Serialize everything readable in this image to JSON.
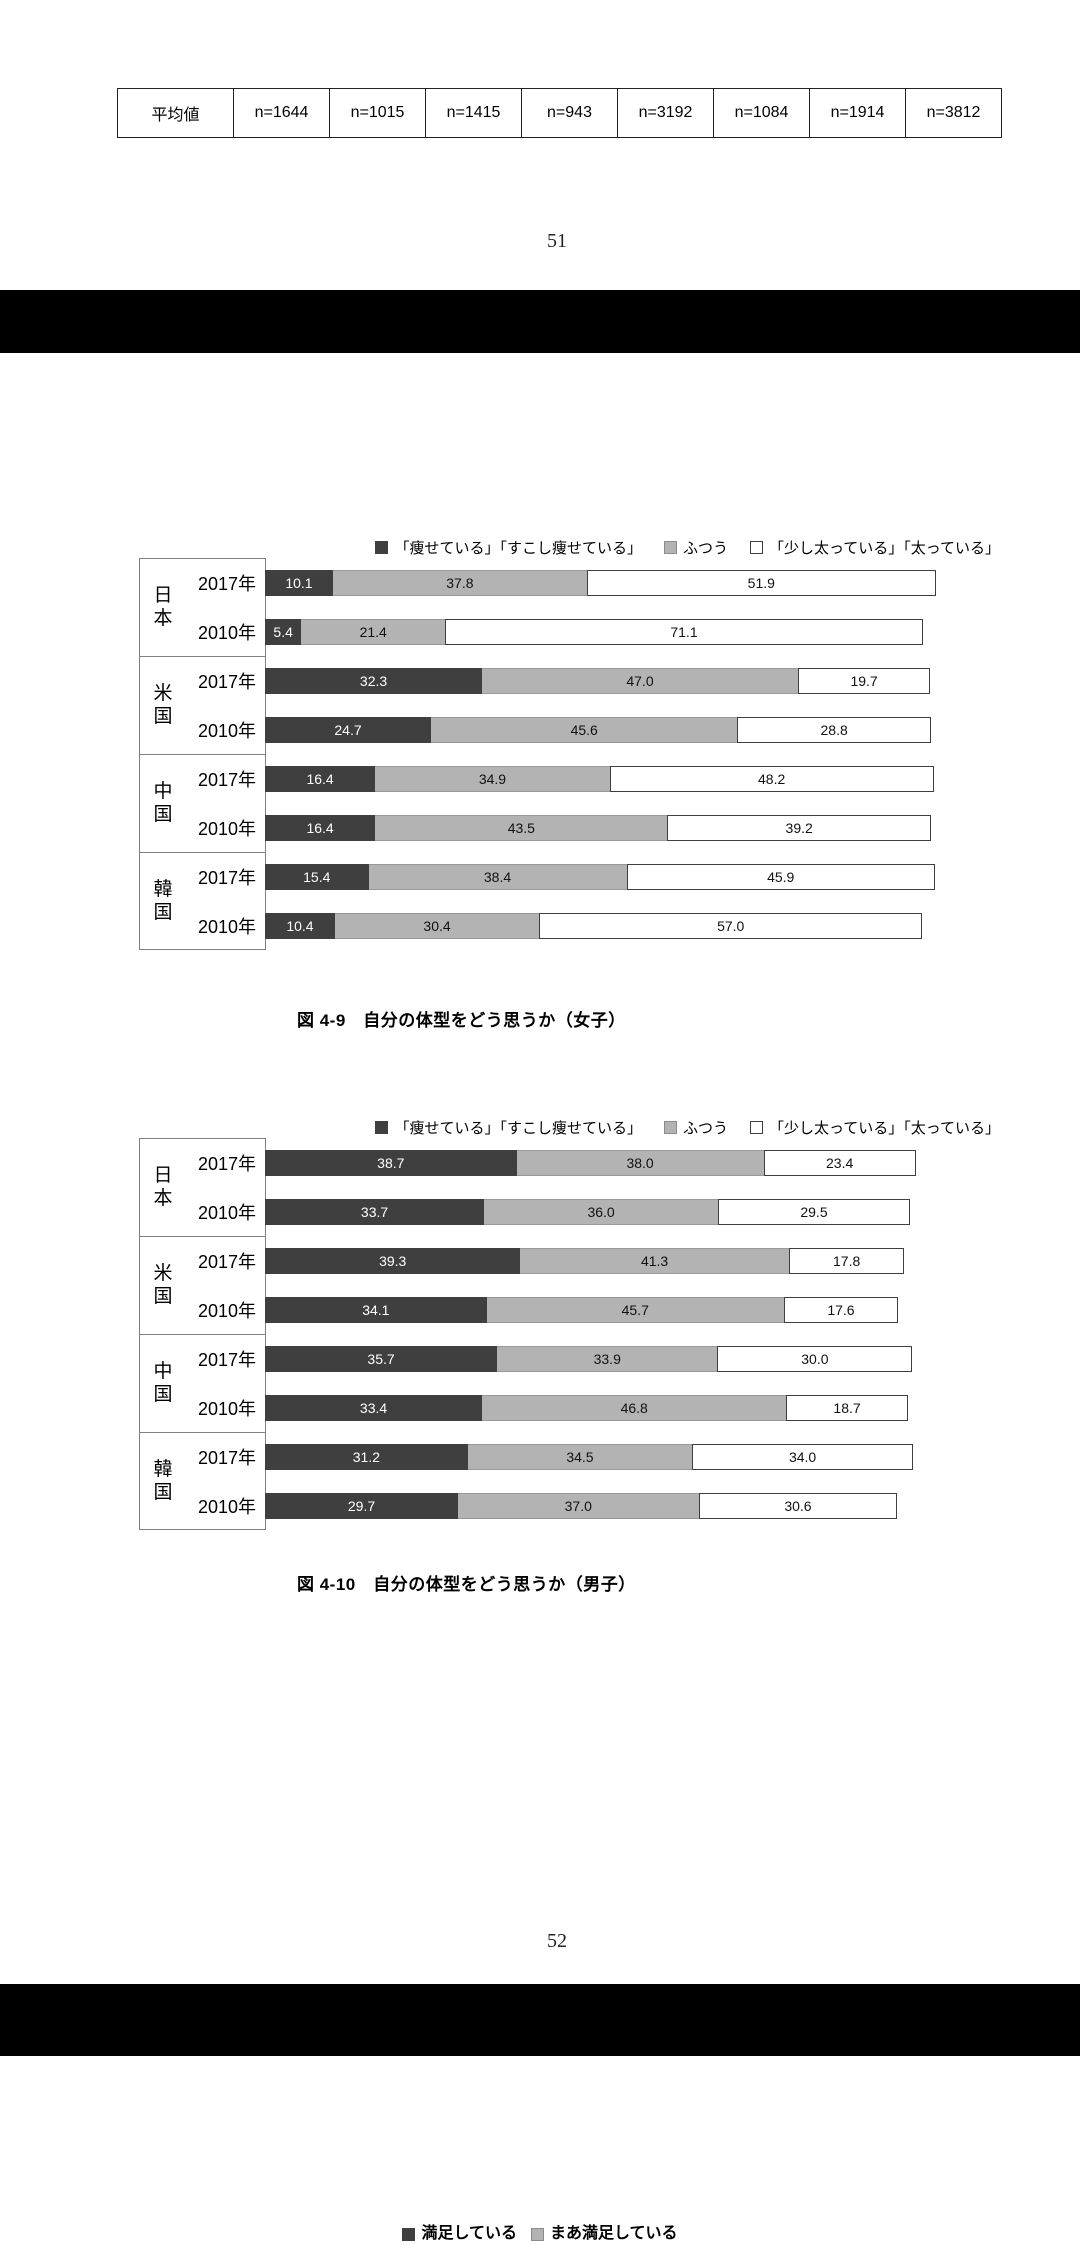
{
  "stat_table": {
    "row_label": "平均値",
    "cells": [
      "n=1644",
      "n=1015",
      "n=1415",
      "n=943",
      "n=3192",
      "n=1084",
      "n=1914",
      "n=3812"
    ]
  },
  "pages": {
    "p51": "51",
    "p52": "52"
  },
  "colors": {
    "segment_dark": "#3f3f3f",
    "segment_gray": "#b3b3b3",
    "segment_white": "#ffffff",
    "separator_black": "#000000"
  },
  "chart_data": [
    {
      "type": "bar",
      "stacked": true,
      "orientation": "horizontal",
      "unit": "%",
      "x_range": [
        0,
        100
      ],
      "title": "図 4-9　自分の体型をどう思うか（女子）",
      "legend": [
        "「痩せている」「すこし痩せている」",
        "ふつう",
        "「少し太っている」「太っている」"
      ],
      "groups": [
        {
          "country": "日本",
          "rows": [
            {
              "year": "2017年",
              "values": [
                10.1,
                37.8,
                51.9
              ]
            },
            {
              "year": "2010年",
              "values": [
                5.4,
                21.4,
                71.1
              ]
            }
          ]
        },
        {
          "country": "米国",
          "rows": [
            {
              "year": "2017年",
              "values": [
                32.3,
                47.0,
                19.7
              ]
            },
            {
              "year": "2010年",
              "values": [
                24.7,
                45.6,
                28.8
              ]
            }
          ]
        },
        {
          "country": "中国",
          "rows": [
            {
              "year": "2017年",
              "values": [
                16.4,
                34.9,
                48.2
              ]
            },
            {
              "year": "2010年",
              "values": [
                16.4,
                43.5,
                39.2
              ]
            }
          ]
        },
        {
          "country": "韓国",
          "rows": [
            {
              "year": "2017年",
              "values": [
                15.4,
                38.4,
                45.9
              ]
            },
            {
              "year": "2010年",
              "values": [
                10.4,
                30.4,
                57.0
              ]
            }
          ]
        }
      ]
    },
    {
      "type": "bar",
      "stacked": true,
      "orientation": "horizontal",
      "unit": "%",
      "x_range": [
        0,
        100
      ],
      "title": "図 4-10　自分の体型をどう思うか（男子）",
      "legend": [
        "「痩せている」「すこし痩せている」",
        "ふつう",
        "「少し太っている」「太っている」"
      ],
      "groups": [
        {
          "country": "日本",
          "rows": [
            {
              "year": "2017年",
              "values": [
                38.7,
                38.0,
                23.4
              ]
            },
            {
              "year": "2010年",
              "values": [
                33.7,
                36.0,
                29.5
              ]
            }
          ]
        },
        {
          "country": "米国",
          "rows": [
            {
              "year": "2017年",
              "values": [
                39.3,
                41.3,
                17.8
              ]
            },
            {
              "year": "2010年",
              "values": [
                34.1,
                45.7,
                17.6
              ]
            }
          ]
        },
        {
          "country": "中国",
          "rows": [
            {
              "year": "2017年",
              "values": [
                35.7,
                33.9,
                30.0
              ]
            },
            {
              "year": "2010年",
              "values": [
                33.4,
                46.8,
                18.7
              ]
            }
          ]
        },
        {
          "country": "韓国",
          "rows": [
            {
              "year": "2017年",
              "values": [
                31.2,
                34.5,
                34.0
              ]
            },
            {
              "year": "2010年",
              "values": [
                29.7,
                37.0,
                30.6
              ]
            }
          ]
        }
      ]
    }
  ],
  "page_bottom": {
    "next_legend": [
      "満足している",
      "まあ満足している"
    ]
  }
}
